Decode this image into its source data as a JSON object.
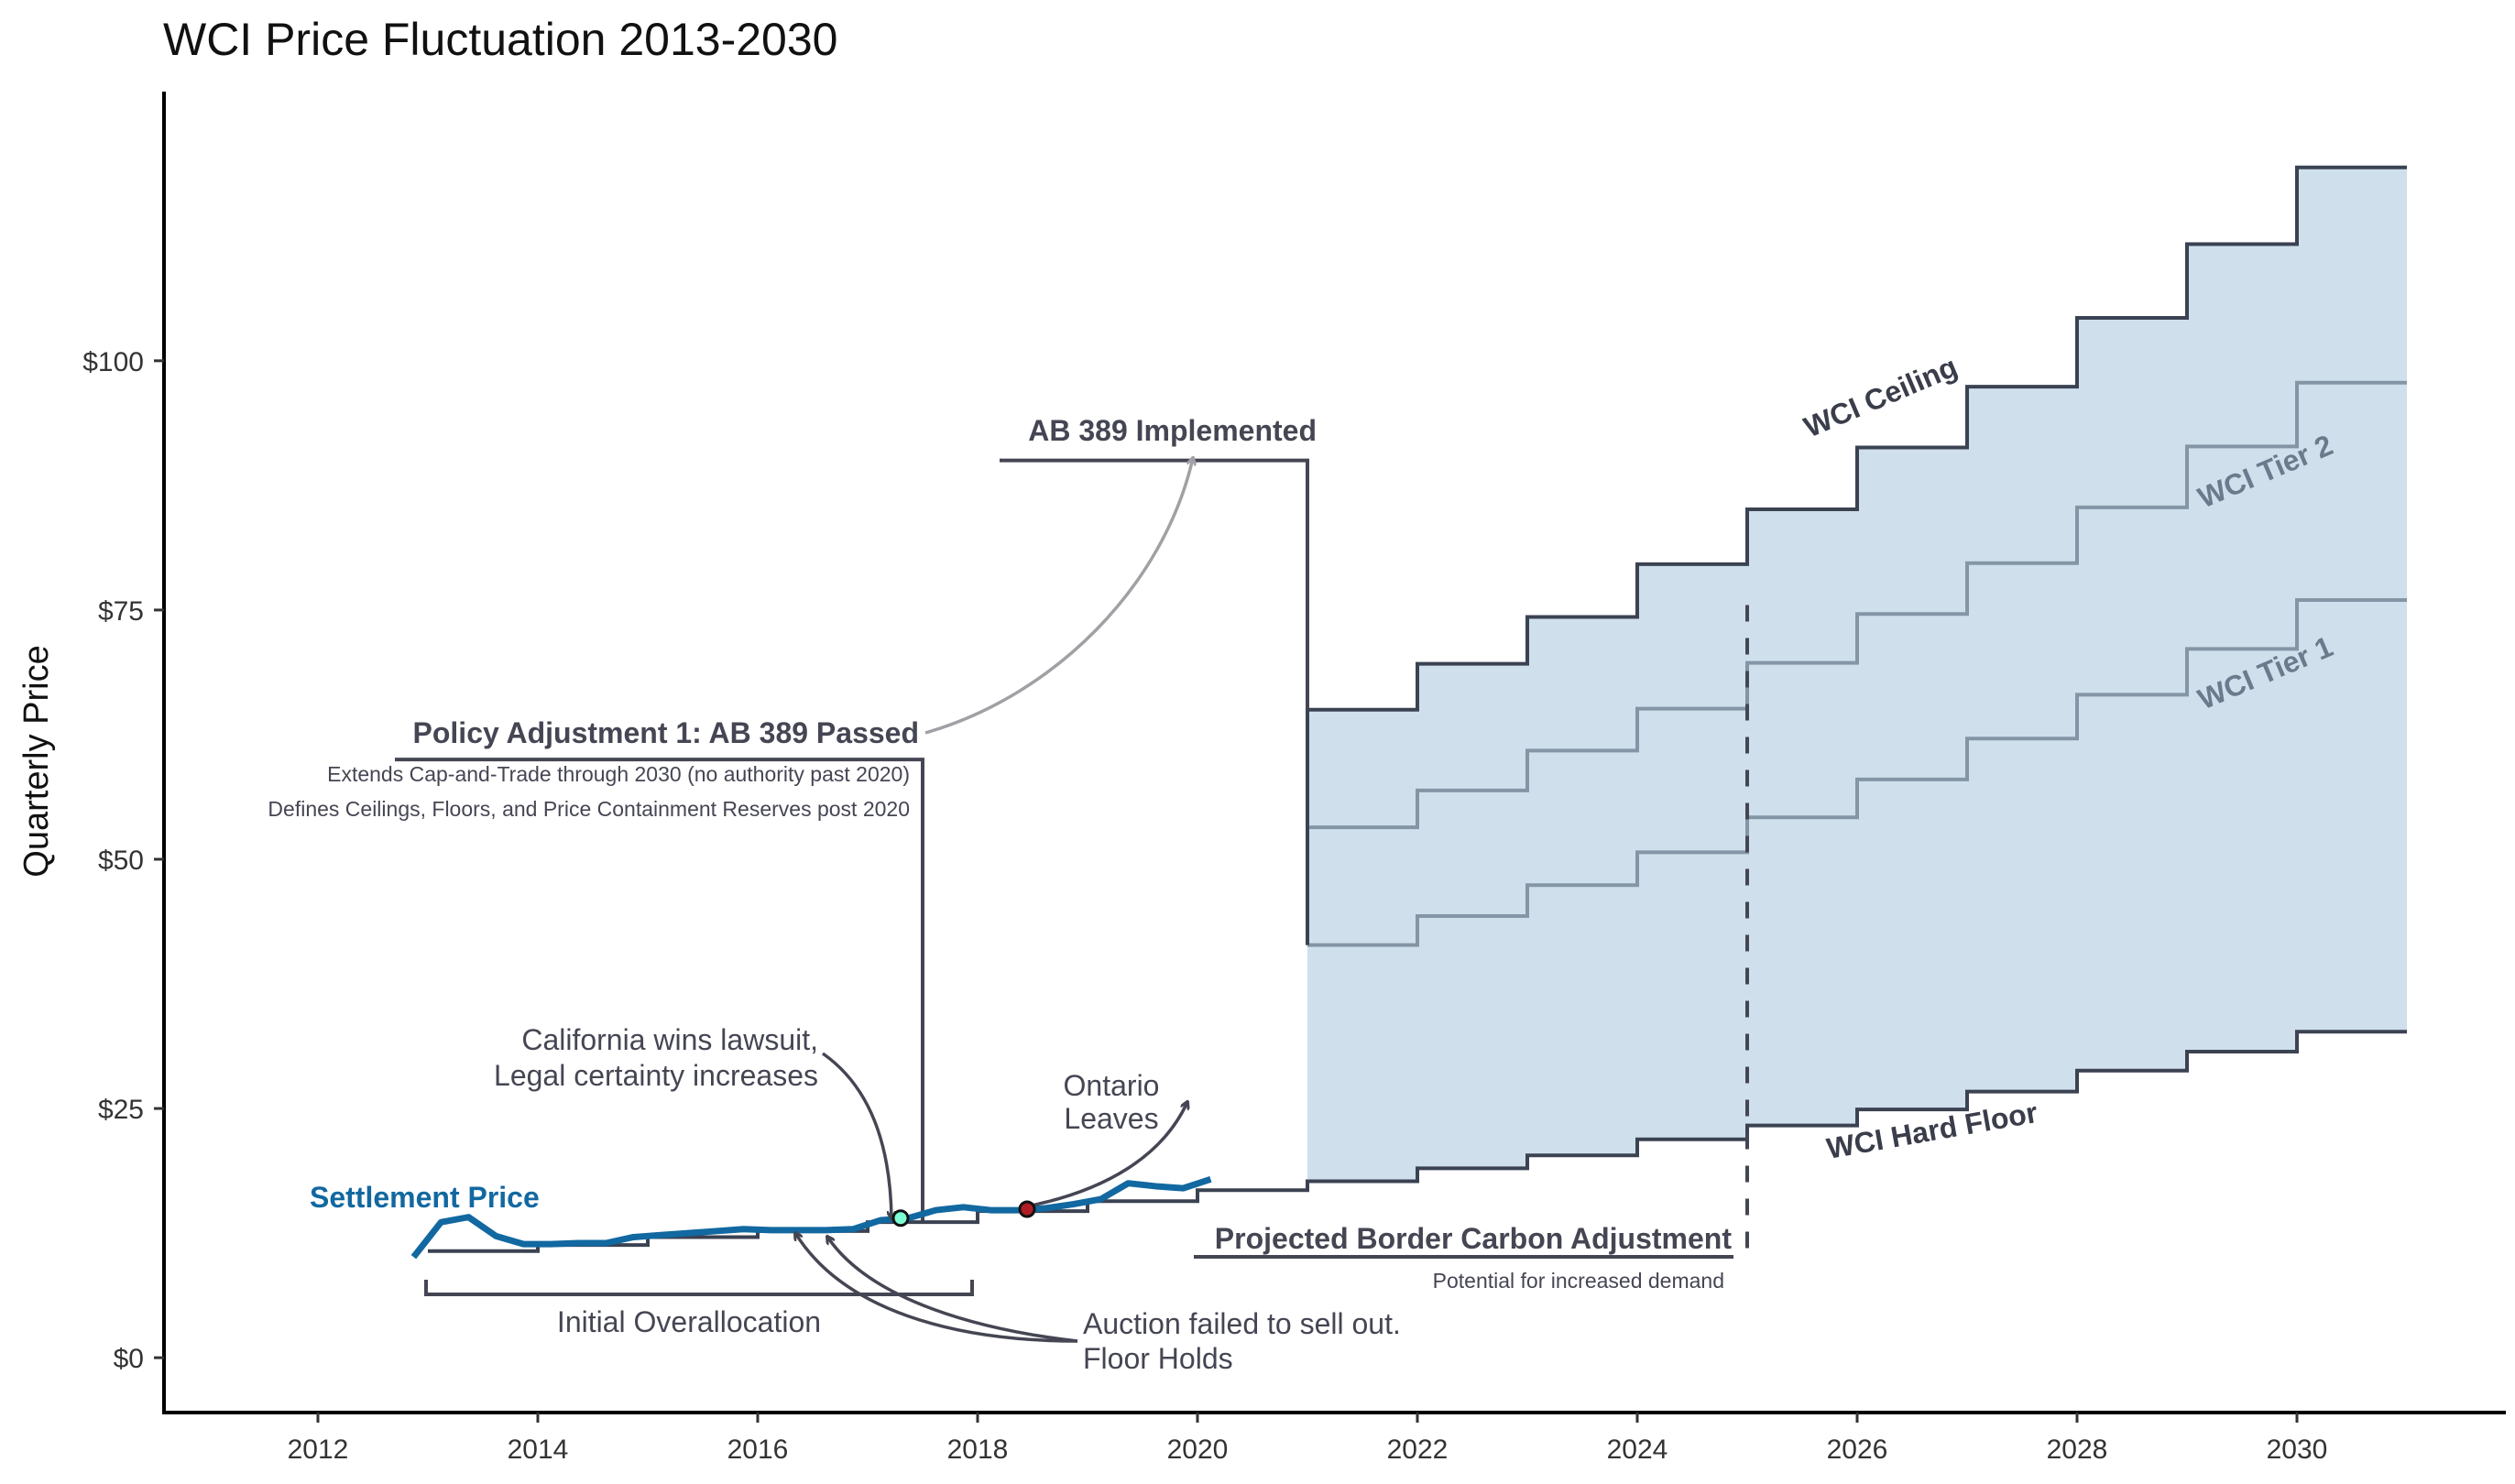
{
  "chart_data": {
    "type": "line",
    "title": "WCI Price Fluctuation 2013-2030",
    "xlabel": "",
    "ylabel": "Quarterly Price",
    "xlim": [
      2010.6,
      2031.9
    ],
    "ylim": [
      -5.5,
      127
    ],
    "x_ticks": [
      2012,
      2014,
      2016,
      2018,
      2020,
      2022,
      2024,
      2026,
      2028,
      2030
    ],
    "x_tick_labels": [
      "2012",
      "2014",
      "2016",
      "2018",
      "2020",
      "2022",
      "2024",
      "2026",
      "2028",
      "2030"
    ],
    "y_ticks": [
      0,
      25,
      50,
      75,
      100
    ],
    "y_tick_labels": [
      "$0",
      "$25",
      "$50",
      "$75",
      "$100"
    ],
    "grid": false,
    "colors": {
      "ceiling": "#3b4252",
      "floor": "#3b4252",
      "tier": "#8495a5",
      "band_fill": "#cfe0ec",
      "settlement": "#1268a0",
      "annotation": "#454653",
      "arrow_light": "#a0a0a5",
      "lawsuit_point": "#7fffd4",
      "ontario_point": "#b01c24"
    },
    "series": [
      {
        "name": "WCI Ceiling",
        "step": true,
        "x": [
          2021,
          2022,
          2023,
          2024,
          2025,
          2026,
          2027,
          2028,
          2029,
          2030,
          2031
        ],
        "values": [
          65.0,
          69.6,
          74.3,
          79.6,
          85.1,
          91.3,
          97.4,
          104.3,
          111.7,
          119.4,
          119.4
        ]
      },
      {
        "name": "WCI Tier 2",
        "step": true,
        "x": [
          2021,
          2022,
          2023,
          2024,
          2025,
          2026,
          2027,
          2028,
          2029,
          2030,
          2031
        ],
        "values": [
          53.2,
          56.9,
          60.9,
          65.1,
          69.7,
          74.6,
          79.7,
          85.3,
          91.4,
          97.8,
          97.8
        ]
      },
      {
        "name": "WCI Tier 1",
        "step": true,
        "x": [
          2021,
          2022,
          2023,
          2024,
          2025,
          2026,
          2027,
          2028,
          2029,
          2030,
          2031
        ],
        "values": [
          41.4,
          44.3,
          47.4,
          50.7,
          54.2,
          58.0,
          62.1,
          66.5,
          71.1,
          76.0,
          76.0
        ]
      },
      {
        "name": "WCI Hard Floor",
        "step": true,
        "x": [
          2013,
          2014,
          2015,
          2016,
          2017,
          2018,
          2019,
          2020,
          2021,
          2022,
          2023,
          2024,
          2025,
          2026,
          2027,
          2028,
          2029,
          2030,
          2031
        ],
        "values": [
          10.7,
          11.3,
          12.1,
          12.7,
          13.6,
          14.7,
          15.7,
          16.8,
          17.7,
          19.0,
          20.3,
          21.9,
          23.3,
          24.9,
          26.7,
          28.8,
          30.7,
          32.7,
          32.7
        ]
      },
      {
        "name": "Settlement Price",
        "step": false,
        "x": [
          2012.87,
          2013.12,
          2013.37,
          2013.62,
          2013.87,
          2014.12,
          2014.37,
          2014.62,
          2014.87,
          2015.12,
          2015.37,
          2015.62,
          2015.87,
          2016.12,
          2016.37,
          2016.62,
          2016.87,
          2017.12,
          2017.37,
          2017.62,
          2017.87,
          2018.12,
          2018.37,
          2018.62,
          2018.87,
          2019.12,
          2019.37,
          2019.62,
          2019.87,
          2020.12
        ],
        "values": [
          10.1,
          13.6,
          14.1,
          12.2,
          11.4,
          11.4,
          11.5,
          11.5,
          12.1,
          12.3,
          12.5,
          12.7,
          12.9,
          12.8,
          12.8,
          12.8,
          12.9,
          13.8,
          14.0,
          14.8,
          15.1,
          14.8,
          14.8,
          15.0,
          15.4,
          15.9,
          17.5,
          17.2,
          17.0,
          17.9
        ]
      }
    ],
    "policy_step": {
      "name": "AB 389 policy step",
      "x": [
        2012.7,
        2017.5,
        2017.5,
        2018.2,
        2021,
        2021
      ],
      "values": [
        60,
        60,
        14.5,
        90,
        90,
        41.4
      ]
    },
    "points": [
      {
        "name": "lawsuit-point",
        "x": 2017.3,
        "y": 14.0
      },
      {
        "name": "ontario-point",
        "x": 2018.45,
        "y": 14.9
      }
    ],
    "vline_dashed": {
      "x": 2025,
      "from": 10.6,
      "to": 75.5
    },
    "annotations": {
      "settlement_label": "Settlement Price",
      "ceiling_label": "WCI Ceiling",
      "tier2_label": "WCI Tier 2",
      "tier1_label": "WCI Tier 1",
      "floor_label": "WCI Hard Floor",
      "ab389_implemented": "AB 389 Implemented",
      "policy_adjustment_title": "Policy Adjustment 1: AB 389 Passed",
      "policy_adjustment_line1": "Extends Cap-and-Trade through 2030 (no authority past 2020)",
      "policy_adjustment_line2": "Defines Ceilings, Floors, and Price Containment Reserves post 2020",
      "lawsuit_line1": "California wins lawsuit,",
      "lawsuit_line2": "Legal certainty increases",
      "ontario_line1": "Ontario",
      "ontario_line2": "Leaves",
      "overallocation": "Initial Overallocation",
      "auction_line1": "Auction failed to sell out.",
      "auction_line2": "Floor Holds",
      "bca_title": "Projected Border Carbon Adjustment",
      "bca_subtitle": "Potential for increased demand"
    }
  }
}
